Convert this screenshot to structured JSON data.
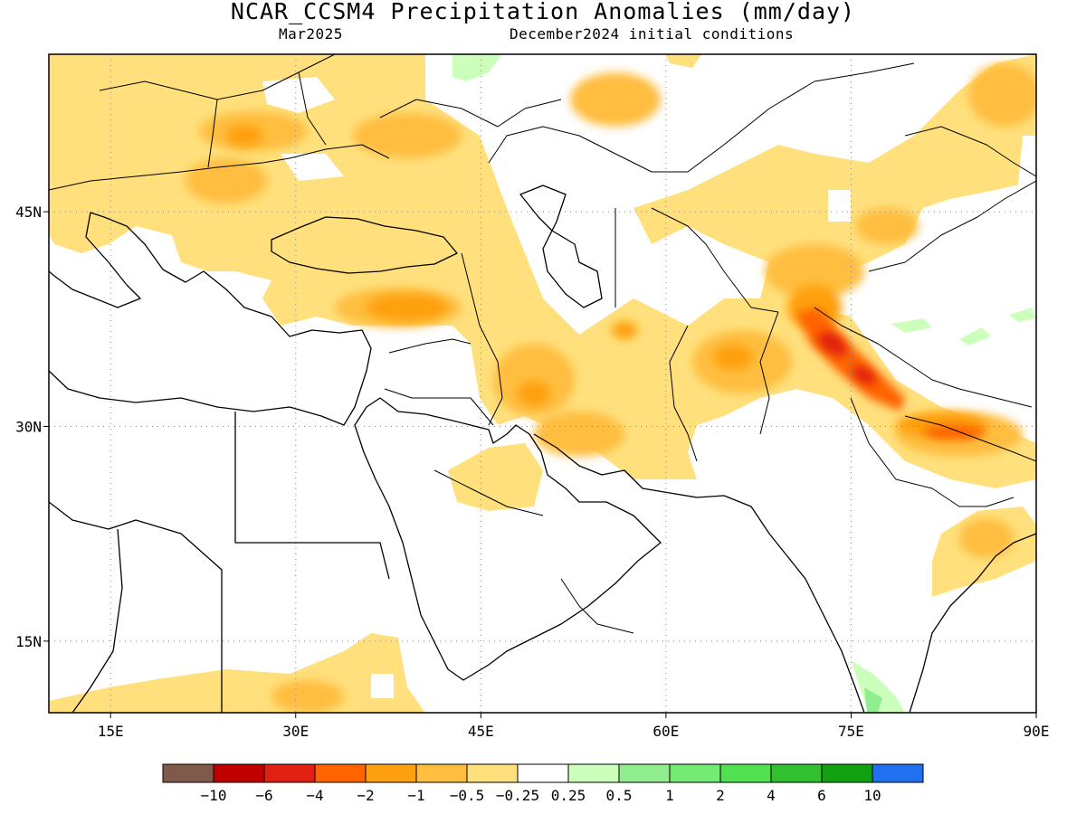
{
  "title": "NCAR_CCSM4 Precipitation Anomalies (mm/day)",
  "subtitle_left": "Mar2025",
  "subtitle_right": "December2024 initial conditions",
  "map": {
    "lon_range": [
      10,
      90
    ],
    "lat_range": [
      10,
      56
    ],
    "x_ticks": [
      {
        "value": 15,
        "label": "15E"
      },
      {
        "value": 30,
        "label": "30E"
      },
      {
        "value": 45,
        "label": "45E"
      },
      {
        "value": 60,
        "label": "60E"
      },
      {
        "value": 75,
        "label": "75E"
      },
      {
        "value": 90,
        "label": "90E"
      }
    ],
    "y_ticks": [
      {
        "value": 15,
        "label": "15N"
      },
      {
        "value": 30,
        "label": "30N"
      },
      {
        "value": 45,
        "label": "45N"
      }
    ],
    "grid": true
  },
  "colorbar": {
    "colors": [
      "#7f5a4a",
      "#c00000",
      "#e02010",
      "#ff6400",
      "#ffa010",
      "#ffbe40",
      "#ffe07c",
      "#ffffff",
      "#ccffbb",
      "#90ee90",
      "#74ec74",
      "#50e050",
      "#30c030",
      "#10a010",
      "#2070f0"
    ],
    "labels": [
      "-10",
      "-6",
      "-4",
      "-2",
      "-1",
      "-0.5",
      "-0.25",
      "0.25",
      "0.5",
      "1",
      "2",
      "4",
      "6",
      "10"
    ]
  },
  "chart_data": {
    "type": "heatmap",
    "title": "NCAR_CCSM4 Precipitation Anomalies (mm/day)",
    "subtitle": "Mar2025 / December2024 initial conditions",
    "xlim": [
      10,
      90
    ],
    "ylim": [
      10,
      56
    ],
    "units": "mm/day",
    "levels": [
      -10,
      -6,
      -4,
      -2,
      -1,
      -0.5,
      -0.25,
      0.25,
      0.5,
      1,
      2,
      4,
      6,
      10
    ],
    "regions": [
      {
        "lon": 25,
        "lat": 50,
        "value": -0.5
      },
      {
        "lon": 33,
        "lat": 51,
        "value": -0.5
      },
      {
        "lon": 42,
        "lat": 38,
        "value": -1
      },
      {
        "lon": 50,
        "lat": 35,
        "value": -0.5
      },
      {
        "lon": 48,
        "lat": 33,
        "value": -1
      },
      {
        "lon": 63,
        "lat": 36,
        "value": -0.5
      },
      {
        "lon": 66,
        "lat": 34,
        "value": -1
      },
      {
        "lon": 71,
        "lat": 36,
        "value": -2
      },
      {
        "lon": 74,
        "lat": 34,
        "value": -4
      },
      {
        "lon": 80,
        "lat": 30,
        "value": -2
      },
      {
        "lon": 85,
        "lat": 28,
        "value": -1
      },
      {
        "lon": 88,
        "lat": 22,
        "value": -0.5
      },
      {
        "lon": 47,
        "lat": 26,
        "value": -0.5
      },
      {
        "lon": 75,
        "lat": 45,
        "value": -0.5
      },
      {
        "lon": 88,
        "lat": 52,
        "value": -0.5
      },
      {
        "lon": 45,
        "lat": 55,
        "value": 0.25
      },
      {
        "lon": 87,
        "lat": 38,
        "value": 0.25
      },
      {
        "lon": 77,
        "lat": 11,
        "value": 0.5
      }
    ]
  }
}
